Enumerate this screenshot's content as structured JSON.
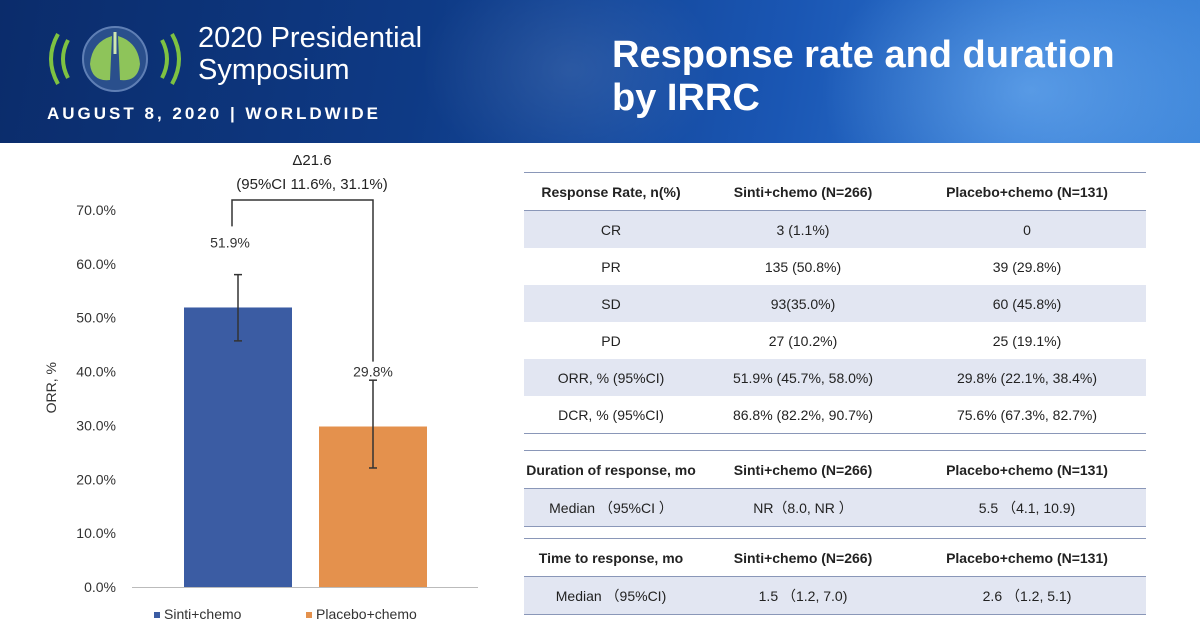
{
  "header": {
    "symposium_line1": "2020 Presidential",
    "symposium_line2": "Symposium",
    "date": "AUGUST 8, 2020 | WORLDWIDE",
    "title_line1": "Response rate and duration",
    "title_line2": "by IRRC"
  },
  "colors": {
    "sinti": "#3b5ca3",
    "placebo": "#e4914d",
    "banner": "#0e3a85",
    "band": "#e2e6f2"
  },
  "chart_data": {
    "type": "bar",
    "categories": [
      "Sinti+chemo",
      "Placebo+chemo"
    ],
    "values": [
      51.9,
      29.8
    ],
    "error_low": [
      45.7,
      22.1
    ],
    "error_high": [
      58.0,
      38.4
    ],
    "value_labels": [
      "51.9%",
      "29.8%"
    ],
    "ylabel": "ORR, %",
    "ylim": [
      0,
      70
    ],
    "yticks": [
      "0.0%",
      "10.0%",
      "20.0%",
      "30.0%",
      "40.0%",
      "50.0%",
      "60.0%",
      "70.0%"
    ],
    "legend": [
      "Sinti+chemo",
      "Placebo+chemo"
    ],
    "annotation_delta": "Δ21.6",
    "annotation_ci": "(95%CI 11.6%, 31.1%)",
    "grid": false
  },
  "response_table": {
    "headers": [
      "Response Rate, n(%)",
      "Sinti+chemo (N=266)",
      "Placebo+chemo (N=131)"
    ],
    "rows": [
      [
        "CR",
        "3 (1.1%)",
        "0"
      ],
      [
        "PR",
        "135 (50.8%)",
        "39 (29.8%)"
      ],
      [
        "SD",
        "93(35.0%)",
        "60 (45.8%)"
      ],
      [
        "PD",
        "27 (10.2%)",
        "25 (19.1%)"
      ],
      [
        "ORR, % (95%CI)",
        "51.9% (45.7%, 58.0%)",
        "29.8% (22.1%, 38.4%)"
      ],
      [
        "DCR, % (95%CI)",
        "86.8% (82.2%, 90.7%)",
        "75.6% (67.3%, 82.7%)"
      ]
    ]
  },
  "duration_table": {
    "headers": [
      "Duration of response, mo",
      "Sinti+chemo (N=266)",
      "Placebo+chemo (N=131)"
    ],
    "row": [
      "Median （95%CI ）",
      "NR（8.0, NR ）",
      "5.5 （4.1, 10.9)"
    ]
  },
  "time_table": {
    "headers": [
      "Time to response, mo",
      "Sinti+chemo (N=266)",
      "Placebo+chemo (N=131)"
    ],
    "row": [
      "Median （95%CI)",
      "1.5 （1.2, 7.0)",
      "2.6 （1.2, 5.1)"
    ]
  }
}
